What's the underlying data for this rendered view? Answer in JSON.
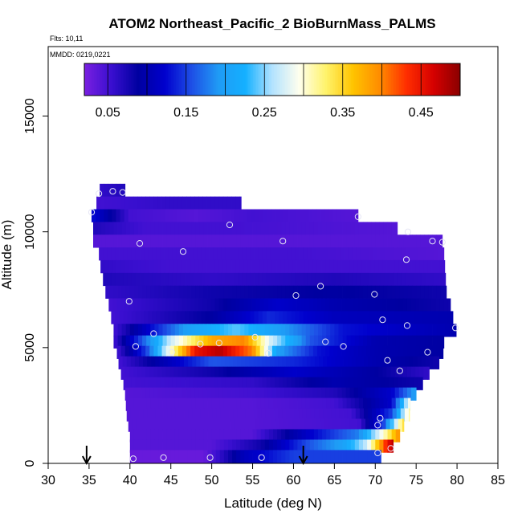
{
  "chart_data": {
    "type": "heatmap",
    "title": "ATOM2 Northeast_Pacific_2 BioBurnMass_PALMS",
    "flights_note": "Flts: 10,11",
    "date_note": "MMDD: 0219,0221",
    "xlabel": "Latitude (deg N)",
    "ylabel": "Altitude (m)",
    "xlim": [
      30,
      85
    ],
    "ylim": [
      0,
      18000
    ],
    "x_ticks": [
      30,
      35,
      40,
      45,
      50,
      55,
      60,
      65,
      70,
      75,
      80,
      85
    ],
    "y_ticks": [
      0,
      5000,
      10000,
      15000
    ],
    "colorbar": {
      "min": 0.02,
      "max": 0.5,
      "tick_values": [
        0.05,
        0.15,
        0.25,
        0.35,
        0.45
      ],
      "tick_labels": [
        "0.05",
        "0.15",
        "0.25",
        "0.35",
        "0.45"
      ],
      "colors": [
        "#7a1fe0",
        "#3a0fd0",
        "#0000a0",
        "#0000cd",
        "#1e4fe6",
        "#1f9bf5",
        "#14b0ff",
        "#b3e2ff",
        "#ffffee",
        "#fff36b",
        "#ffc400",
        "#ff8c00",
        "#ff2e00",
        "#d60000",
        "#8a0000"
      ]
    },
    "arrows_latitude": [
      34.7,
      61.2
    ],
    "altitude_bins": [
      {
        "alt": 11800,
        "lat_start": 36.3,
        "lat_end": 39.4,
        "values": [
          {
            "lat": 36.3,
            "v": 0.06
          },
          {
            "lat": 39.4,
            "v": 0.07
          }
        ]
      },
      {
        "alt": 11250,
        "lat_start": 35.9,
        "lat_end": 53.6,
        "values": [
          {
            "lat": 35.9,
            "v": 0.05
          },
          {
            "lat": 45,
            "v": 0.06
          },
          {
            "lat": 53.6,
            "v": 0.06
          }
        ]
      },
      {
        "alt": 10700,
        "lat_start": 35.3,
        "lat_end": 67.9,
        "values": [
          {
            "lat": 35.3,
            "v": 0.13
          },
          {
            "lat": 40,
            "v": 0.05
          },
          {
            "lat": 48,
            "v": 0.04
          },
          {
            "lat": 55,
            "v": 0.05
          },
          {
            "lat": 67.9,
            "v": 0.04
          }
        ]
      },
      {
        "alt": 10150,
        "lat_start": 35.5,
        "lat_end": 72.7,
        "values": [
          {
            "lat": 35.5,
            "v": 0.07
          },
          {
            "lat": 42,
            "v": 0.05
          },
          {
            "lat": 52,
            "v": 0.05
          },
          {
            "lat": 72.7,
            "v": 0.04
          }
        ]
      },
      {
        "alt": 9600,
        "lat_start": 35.5,
        "lat_end": 78.2,
        "values": [
          {
            "lat": 35.5,
            "v": 0.04
          },
          {
            "lat": 45,
            "v": 0.04
          },
          {
            "lat": 60,
            "v": 0.04
          },
          {
            "lat": 78.2,
            "v": 0.04
          }
        ]
      },
      {
        "alt": 9050,
        "lat_start": 36.2,
        "lat_end": 78.4,
        "values": [
          {
            "lat": 36.2,
            "v": 0.05
          },
          {
            "lat": 45,
            "v": 0.05
          },
          {
            "lat": 60,
            "v": 0.05
          },
          {
            "lat": 78.4,
            "v": 0.04
          }
        ]
      },
      {
        "alt": 8500,
        "lat_start": 36.4,
        "lat_end": 78.5,
        "values": [
          {
            "lat": 36.4,
            "v": 0.06
          },
          {
            "lat": 45,
            "v": 0.05
          },
          {
            "lat": 60,
            "v": 0.05
          },
          {
            "lat": 78.5,
            "v": 0.05
          }
        ]
      },
      {
        "alt": 7950,
        "lat_start": 36.7,
        "lat_end": 78.6,
        "values": [
          {
            "lat": 36.7,
            "v": 0.07
          },
          {
            "lat": 50,
            "v": 0.06
          },
          {
            "lat": 65,
            "v": 0.07
          },
          {
            "lat": 78.6,
            "v": 0.06
          }
        ]
      },
      {
        "alt": 7400,
        "lat_start": 37.0,
        "lat_end": 78.7,
        "values": [
          {
            "lat": 37.0,
            "v": 0.06
          },
          {
            "lat": 50,
            "v": 0.08
          },
          {
            "lat": 65,
            "v": 0.09
          },
          {
            "lat": 78.7,
            "v": 0.08
          }
        ]
      },
      {
        "alt": 6850,
        "lat_start": 37.4,
        "lat_end": 79.2,
        "values": [
          {
            "lat": 37.4,
            "v": 0.05
          },
          {
            "lat": 50,
            "v": 0.08
          },
          {
            "lat": 58,
            "v": 0.12
          },
          {
            "lat": 65,
            "v": 0.1
          },
          {
            "lat": 79.2,
            "v": 0.08
          }
        ]
      },
      {
        "alt": 6300,
        "lat_start": 37.7,
        "lat_end": 79.5,
        "values": [
          {
            "lat": 37.7,
            "v": 0.05
          },
          {
            "lat": 50,
            "v": 0.09
          },
          {
            "lat": 57,
            "v": 0.14
          },
          {
            "lat": 65,
            "v": 0.11
          },
          {
            "lat": 79.5,
            "v": 0.1
          }
        ]
      },
      {
        "alt": 5750,
        "lat_start": 38.0,
        "lat_end": 79.9,
        "values": [
          {
            "lat": 38.0,
            "v": 0.05
          },
          {
            "lat": 47,
            "v": 0.2
          },
          {
            "lat": 53,
            "v": 0.24
          },
          {
            "lat": 58,
            "v": 0.2
          },
          {
            "lat": 66,
            "v": 0.13
          },
          {
            "lat": 79.9,
            "v": 0.1
          }
        ]
      },
      {
        "alt": 5250,
        "lat_start": 38.0,
        "lat_end": 78.4,
        "values": [
          {
            "lat": 38.0,
            "v": 0.05
          },
          {
            "lat": 45,
            "v": 0.27
          },
          {
            "lat": 50,
            "v": 0.38
          },
          {
            "lat": 54,
            "v": 0.4
          },
          {
            "lat": 57,
            "v": 0.28
          },
          {
            "lat": 62,
            "v": 0.16
          },
          {
            "lat": 70,
            "v": 0.1
          },
          {
            "lat": 78.4,
            "v": 0.09
          }
        ]
      },
      {
        "alt": 4800,
        "lat_start": 38.4,
        "lat_end": 78.3,
        "values": [
          {
            "lat": 38.4,
            "v": 0.05
          },
          {
            "lat": 42,
            "v": 0.15
          },
          {
            "lat": 45,
            "v": 0.3
          },
          {
            "lat": 48,
            "v": 0.45
          },
          {
            "lat": 51,
            "v": 0.48
          },
          {
            "lat": 55,
            "v": 0.4
          },
          {
            "lat": 58,
            "v": 0.2
          },
          {
            "lat": 63,
            "v": 0.13
          },
          {
            "lat": 70,
            "v": 0.1
          },
          {
            "lat": 78.3,
            "v": 0.09
          }
        ]
      },
      {
        "alt": 4350,
        "lat_start": 38.6,
        "lat_end": 77.8,
        "values": [
          {
            "lat": 38.6,
            "v": 0.05
          },
          {
            "lat": 50,
            "v": 0.16
          },
          {
            "lat": 60,
            "v": 0.14
          },
          {
            "lat": 70,
            "v": 0.1
          },
          {
            "lat": 77.8,
            "v": 0.08
          }
        ]
      },
      {
        "alt": 3900,
        "lat_start": 38.9,
        "lat_end": 76.6,
        "values": [
          {
            "lat": 38.9,
            "v": 0.05
          },
          {
            "lat": 50,
            "v": 0.08
          },
          {
            "lat": 60,
            "v": 0.12
          },
          {
            "lat": 70,
            "v": 0.09
          },
          {
            "lat": 76.6,
            "v": 0.06
          }
        ]
      },
      {
        "alt": 3450,
        "lat_start": 39.2,
        "lat_end": 75.8,
        "values": [
          {
            "lat": 39.2,
            "v": 0.05
          },
          {
            "lat": 55,
            "v": 0.06
          },
          {
            "lat": 65,
            "v": 0.1
          },
          {
            "lat": 75.8,
            "v": 0.08
          }
        ]
      },
      {
        "alt": 3000,
        "lat_start": 39.4,
        "lat_end": 75.0,
        "values": [
          {
            "lat": 39.4,
            "v": 0.04
          },
          {
            "lat": 55,
            "v": 0.05
          },
          {
            "lat": 65,
            "v": 0.07
          },
          {
            "lat": 72,
            "v": 0.12
          },
          {
            "lat": 75.0,
            "v": 0.2
          }
        ]
      },
      {
        "alt": 2550,
        "lat_start": 39.5,
        "lat_end": 74.3,
        "values": [
          {
            "lat": 39.5,
            "v": 0.04
          },
          {
            "lat": 55,
            "v": 0.04
          },
          {
            "lat": 65,
            "v": 0.05
          },
          {
            "lat": 72,
            "v": 0.12
          },
          {
            "lat": 74.3,
            "v": 0.3
          }
        ]
      },
      {
        "alt": 2100,
        "lat_start": 39.6,
        "lat_end": 74.2,
        "values": [
          {
            "lat": 39.6,
            "v": 0.04
          },
          {
            "lat": 55,
            "v": 0.04
          },
          {
            "lat": 67,
            "v": 0.05
          },
          {
            "lat": 72,
            "v": 0.15
          },
          {
            "lat": 74.2,
            "v": 0.32
          }
        ]
      },
      {
        "alt": 1650,
        "lat_start": 39.8,
        "lat_end": 73.5,
        "values": [
          {
            "lat": 39.8,
            "v": 0.04
          },
          {
            "lat": 55,
            "v": 0.04
          },
          {
            "lat": 68,
            "v": 0.05
          },
          {
            "lat": 71,
            "v": 0.15
          },
          {
            "lat": 73.5,
            "v": 0.35
          }
        ]
      },
      {
        "alt": 1200,
        "lat_start": 40.0,
        "lat_end": 73.0,
        "values": [
          {
            "lat": 40.0,
            "v": 0.04
          },
          {
            "lat": 55,
            "v": 0.04
          },
          {
            "lat": 62,
            "v": 0.12
          },
          {
            "lat": 68,
            "v": 0.18
          },
          {
            "lat": 71,
            "v": 0.3
          },
          {
            "lat": 73.0,
            "v": 0.4
          }
        ]
      },
      {
        "alt": 750,
        "lat_start": 40.0,
        "lat_end": 72.2,
        "values": [
          {
            "lat": 40.0,
            "v": 0.04
          },
          {
            "lat": 50,
            "v": 0.04
          },
          {
            "lat": 56,
            "v": 0.08
          },
          {
            "lat": 62,
            "v": 0.16
          },
          {
            "lat": 66,
            "v": 0.2
          },
          {
            "lat": 69,
            "v": 0.27
          },
          {
            "lat": 71.5,
            "v": 0.45
          },
          {
            "lat": 72.2,
            "v": 0.48
          }
        ]
      },
      {
        "alt": 300,
        "lat_start": 40.0,
        "lat_end": 70.7,
        "values": [
          {
            "lat": 40.0,
            "v": 0.03
          },
          {
            "lat": 49,
            "v": 0.03
          },
          {
            "lat": 51,
            "v": 0.06
          },
          {
            "lat": 54,
            "v": 0.11
          },
          {
            "lat": 60,
            "v": 0.15
          },
          {
            "lat": 65,
            "v": 0.15
          },
          {
            "lat": 70.7,
            "v": 0.15
          }
        ]
      }
    ],
    "sample_points": [
      [
        36.2,
        11650
      ],
      [
        37.9,
        11750
      ],
      [
        39.1,
        11700
      ],
      [
        35.3,
        10850
      ],
      [
        52.2,
        10300
      ],
      [
        67.9,
        10650
      ],
      [
        74.0,
        10000
      ],
      [
        41.2,
        9500
      ],
      [
        58.7,
        9600
      ],
      [
        77.0,
        9600
      ],
      [
        78.2,
        9550
      ],
      [
        46.5,
        9150
      ],
      [
        73.8,
        8800
      ],
      [
        63.3,
        7650
      ],
      [
        60.3,
        7250
      ],
      [
        69.9,
        7300
      ],
      [
        39.9,
        7000
      ],
      [
        70.9,
        6200
      ],
      [
        73.9,
        5950
      ],
      [
        79.8,
        5850
      ],
      [
        42.9,
        5600
      ],
      [
        55.3,
        5450
      ],
      [
        63.9,
        5250
      ],
      [
        40.7,
        5050
      ],
      [
        48.6,
        5150
      ],
      [
        50.9,
        5200
      ],
      [
        66.1,
        5050
      ],
      [
        45.1,
        4800
      ],
      [
        56.9,
        4750
      ],
      [
        76.4,
        4800
      ],
      [
        71.5,
        4450
      ],
      [
        73.0,
        4000
      ],
      [
        70.6,
        1950
      ],
      [
        70.3,
        1650
      ],
      [
        40.4,
        200
      ],
      [
        44.1,
        250
      ],
      [
        49.8,
        250
      ],
      [
        56.1,
        250
      ],
      [
        70.3,
        450
      ],
      [
        71.9,
        650
      ]
    ]
  }
}
